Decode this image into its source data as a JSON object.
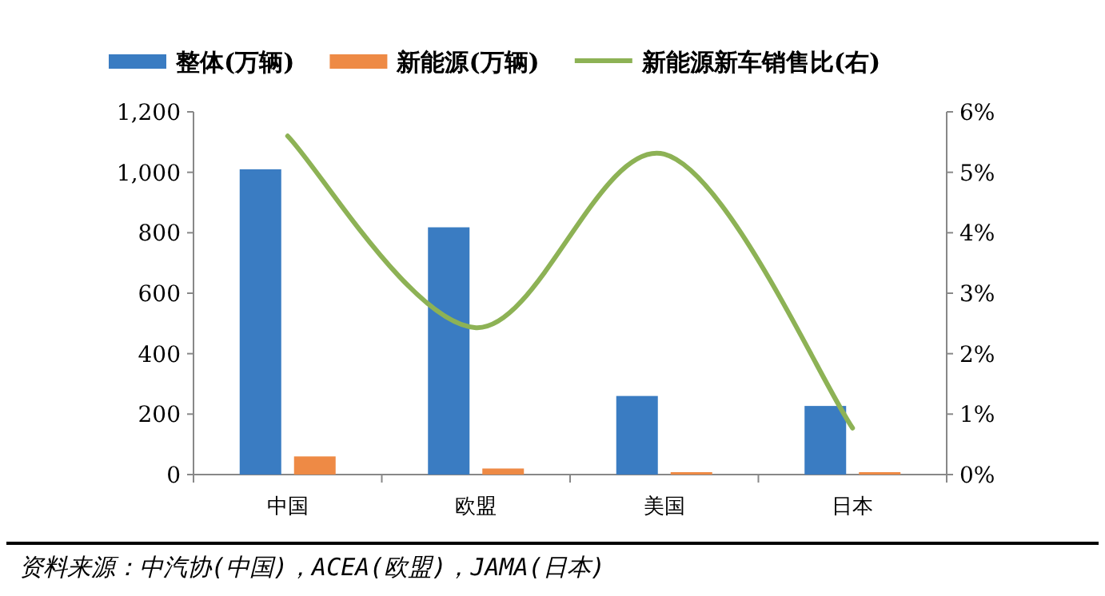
{
  "chart_data": {
    "type": "bar",
    "categories": [
      "中国",
      "欧盟",
      "美国",
      "日本"
    ],
    "series": [
      {
        "name": "整体(万辆)",
        "color": "#3a7cc2",
        "values": [
          1010,
          818,
          260,
          227
        ]
      },
      {
        "name": "新能源(万辆)",
        "color": "#ee8a45",
        "values": [
          60,
          20,
          8,
          8
        ]
      },
      {
        "name": "新能源新车销售比(右)",
        "type": "line",
        "axis": "y2",
        "color": "#8db255",
        "values": [
          5.6,
          2.43,
          5.3,
          0.77
        ]
      }
    ],
    "ylim": [
      0,
      1200
    ],
    "yticks": [
      {
        "value": 0,
        "label": "0"
      },
      {
        "value": 200,
        "label": "200"
      },
      {
        "value": 400,
        "label": "400"
      },
      {
        "value": 600,
        "label": "600"
      },
      {
        "value": 800,
        "label": "800"
      },
      {
        "value": 1000,
        "label": "1,000"
      },
      {
        "value": 1200,
        "label": "1,200"
      }
    ],
    "y2lim": [
      0,
      6
    ],
    "y2ticks": [
      {
        "value": 0,
        "label": "0%"
      },
      {
        "value": 1,
        "label": "1%"
      },
      {
        "value": 2,
        "label": "2%"
      },
      {
        "value": 3,
        "label": "3%"
      },
      {
        "value": 4,
        "label": "4%"
      },
      {
        "value": 5,
        "label": "5%"
      },
      {
        "value": 6,
        "label": "6%"
      }
    ],
    "legend": "top",
    "grid": false,
    "annotations": [
      "资料来源：中汽协(中国)，ACEA(欧盟)，JAMA(日本)"
    ]
  }
}
